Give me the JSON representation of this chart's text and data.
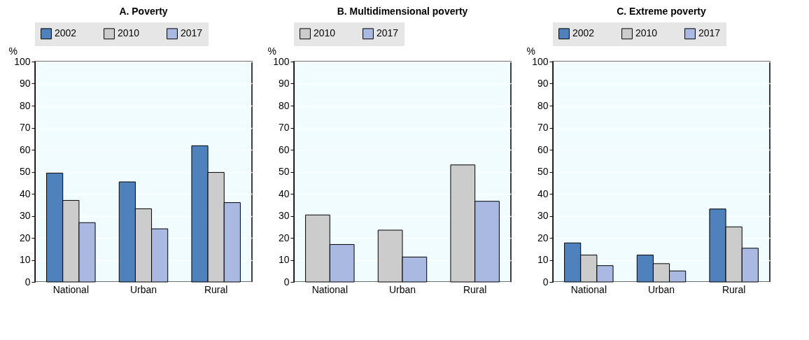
{
  "chart_data": [
    {
      "type": "bar",
      "title": "A. Poverty",
      "ylabel": "%",
      "categories": [
        "National",
        "Urban",
        "Rural"
      ],
      "ylim": [
        0,
        100
      ],
      "yticks": [
        0,
        10,
        20,
        30,
        40,
        50,
        60,
        70,
        80,
        90,
        100
      ],
      "grid": "y",
      "legend": "top",
      "series": [
        {
          "name": "2002",
          "color": "#4f81bd",
          "values": [
            49.4,
            45.4,
            61.8
          ]
        },
        {
          "name": "2010",
          "color": "#cccccc",
          "values": [
            37.0,
            33.2,
            49.7
          ]
        },
        {
          "name": "2017",
          "color": "#a9b9e2",
          "values": [
            26.9,
            24.1,
            36.0
          ]
        }
      ]
    },
    {
      "type": "bar",
      "title": "B. Multidimensional poverty",
      "ylabel": "%",
      "categories": [
        "National",
        "Urban",
        "Rural"
      ],
      "ylim": [
        0,
        100
      ],
      "yticks": [
        0,
        10,
        20,
        30,
        40,
        50,
        60,
        70,
        80,
        90,
        100
      ],
      "grid": "y",
      "legend": "top",
      "series": [
        {
          "name": "2010",
          "color": "#cccccc",
          "values": [
            30.4,
            23.5,
            53.1
          ]
        },
        {
          "name": "2017",
          "color": "#a9b9e2",
          "values": [
            17.0,
            11.3,
            36.6
          ]
        }
      ]
    },
    {
      "type": "bar",
      "title": "C. Extreme poverty",
      "ylabel": "%",
      "categories": [
        "National",
        "Urban",
        "Rural"
      ],
      "ylim": [
        0,
        100
      ],
      "yticks": [
        0,
        10,
        20,
        30,
        40,
        50,
        60,
        70,
        80,
        90,
        100
      ],
      "grid": "y",
      "legend": "top",
      "series": [
        {
          "name": "2002",
          "color": "#4f81bd",
          "values": [
            17.7,
            12.2,
            33.1
          ]
        },
        {
          "name": "2010",
          "color": "#cccccc",
          "values": [
            12.2,
            8.3,
            25.0
          ]
        },
        {
          "name": "2017",
          "color": "#a9b9e2",
          "values": [
            7.4,
            5.0,
            15.3
          ]
        }
      ]
    }
  ]
}
